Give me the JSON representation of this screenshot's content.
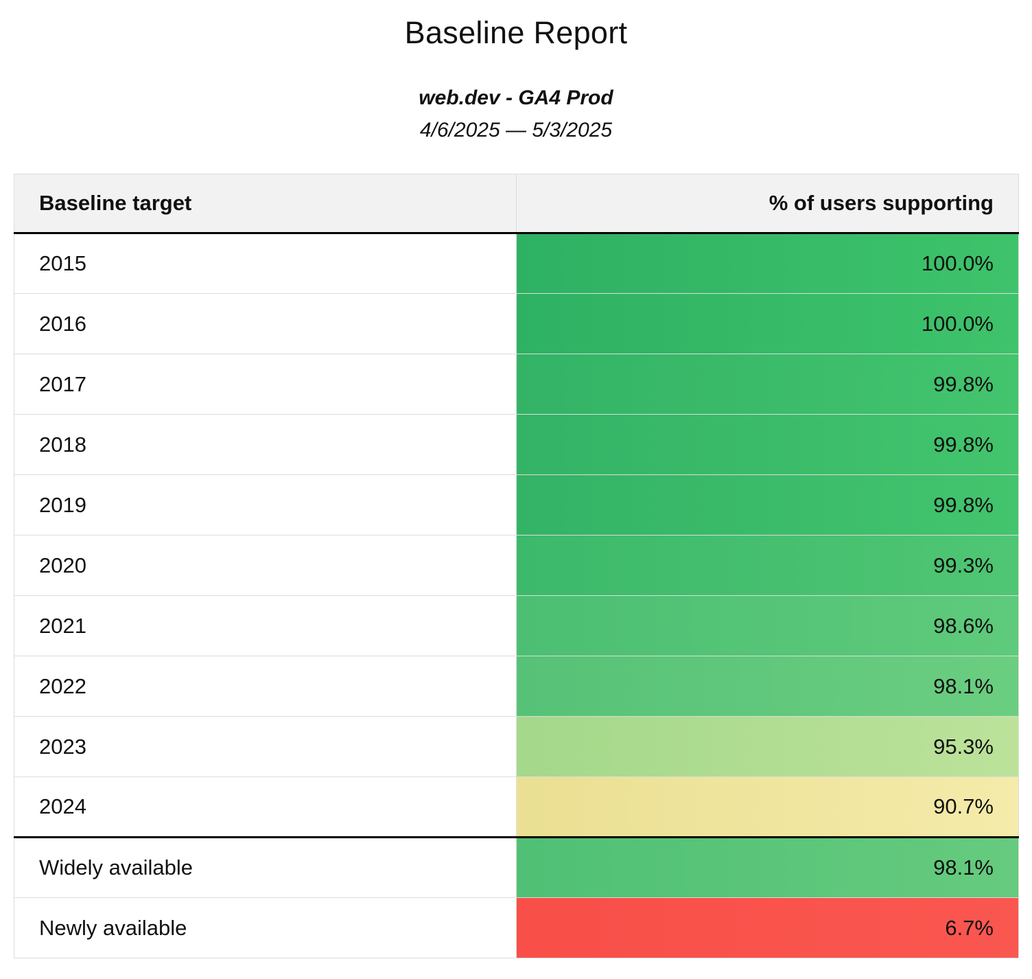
{
  "header": {
    "title": "Baseline Report",
    "subtitle": "web.dev - GA4 Prod",
    "date_range": "4/6/2025 — 5/3/2025"
  },
  "table": {
    "columns": [
      "Baseline target",
      "% of users supporting"
    ],
    "rows": [
      {
        "label": "2015",
        "value": "100.0%",
        "color_start": "#2eb163",
        "color_end": "#3ec36b",
        "divider_above": false
      },
      {
        "label": "2016",
        "value": "100.0%",
        "color_start": "#2eb163",
        "color_end": "#3ec36b",
        "divider_above": false
      },
      {
        "label": "2017",
        "value": "99.8%",
        "color_start": "#33b366",
        "color_end": "#43c46d",
        "divider_above": false
      },
      {
        "label": "2018",
        "value": "99.8%",
        "color_start": "#33b366",
        "color_end": "#43c46d",
        "divider_above": false
      },
      {
        "label": "2019",
        "value": "99.8%",
        "color_start": "#33b366",
        "color_end": "#43c46d",
        "divider_above": false
      },
      {
        "label": "2020",
        "value": "99.3%",
        "color_start": "#3cb96b",
        "color_end": "#4fc673",
        "divider_above": false
      },
      {
        "label": "2021",
        "value": "98.6%",
        "color_start": "#4cbf73",
        "color_end": "#5fca7b",
        "divider_above": false
      },
      {
        "label": "2022",
        "value": "98.1%",
        "color_start": "#56c277",
        "color_end": "#6bce81",
        "divider_above": false
      },
      {
        "label": "2023",
        "value": "95.3%",
        "color_start": "#a4d88a",
        "color_end": "#bce29a",
        "divider_above": false
      },
      {
        "label": "2024",
        "value": "90.7%",
        "color_start": "#eadf92",
        "color_end": "#f5ebaa",
        "divider_above": false
      },
      {
        "label": "Widely available",
        "value": "98.1%",
        "color_start": "#4fc075",
        "color_end": "#66cb7e",
        "divider_above": true
      },
      {
        "label": "Newly available",
        "value": "6.7%",
        "color_start": "#f84f48",
        "color_end": "#fa5750",
        "divider_above": false
      }
    ]
  },
  "chart_data": {
    "type": "table",
    "title": "Baseline Report",
    "subtitle": "web.dev - GA4 Prod",
    "date_range": "4/6/2025 — 5/3/2025",
    "columns": [
      "Baseline target",
      "% of users supporting"
    ],
    "categories": [
      "2015",
      "2016",
      "2017",
      "2018",
      "2019",
      "2020",
      "2021",
      "2022",
      "2023",
      "2024",
      "Widely available",
      "Newly available"
    ],
    "values": [
      100.0,
      100.0,
      99.8,
      99.8,
      99.8,
      99.3,
      98.6,
      98.1,
      95.3,
      90.7,
      98.1,
      6.7
    ],
    "value_format": "percent",
    "color_scale": "heatmap green (high) to yellow (mid) to red (low)",
    "heatmap_colors": {
      "high": "#3ec36b",
      "mid": "#f0e59c",
      "low": "#f84f48"
    }
  }
}
